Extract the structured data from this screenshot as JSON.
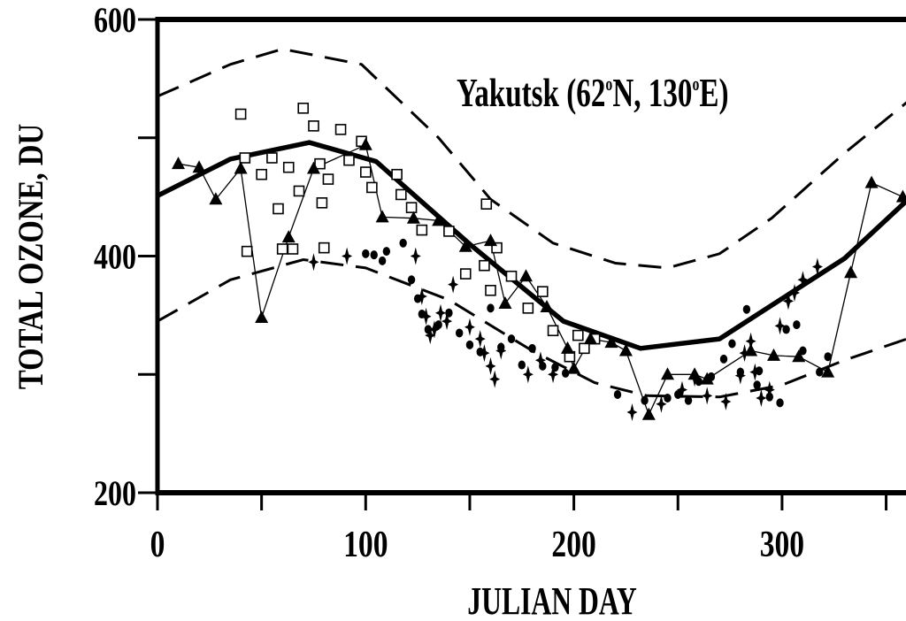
{
  "chart_data": {
    "type": "scatter",
    "title": "Yakutsk  (62°N, 130°E)",
    "title_parts": {
      "place": "Yakutsk  (62",
      "lat_unit": "N, 130",
      "lon_unit": "E)",
      "degree_mark": "o"
    },
    "xlabel": "JULIAN DAY",
    "ylabel": "TOTAL OZONE, DU",
    "xlim": [
      0,
      360
    ],
    "ylim": [
      200,
      600
    ],
    "x_ticks": [
      0,
      100,
      200,
      300
    ],
    "y_ticks_labeled": [
      200,
      400,
      600
    ],
    "y_ticks_minor": [
      300,
      500
    ],
    "grid": false,
    "series": [
      {
        "style": "thick-solid-line",
        "points": [
          [
            0,
            451
          ],
          [
            35,
            482
          ],
          [
            73,
            496
          ],
          [
            105,
            480
          ],
          [
            150,
            410
          ],
          [
            195,
            345
          ],
          [
            232,
            322
          ],
          [
            270,
            330
          ],
          [
            300,
            364
          ],
          [
            330,
            398
          ],
          [
            360,
            447
          ]
        ]
      },
      {
        "style": "upper-dashed-line",
        "points": [
          [
            0,
            535
          ],
          [
            35,
            562
          ],
          [
            60,
            575
          ],
          [
            98,
            562
          ],
          [
            135,
            500
          ],
          [
            160,
            448
          ],
          [
            190,
            411
          ],
          [
            220,
            394
          ],
          [
            245,
            390
          ],
          [
            270,
            402
          ],
          [
            295,
            432
          ],
          [
            330,
            487
          ],
          [
            360,
            530
          ]
        ]
      },
      {
        "style": "lower-dashed-line",
        "points": [
          [
            0,
            345
          ],
          [
            35,
            380
          ],
          [
            70,
            397
          ],
          [
            100,
            390
          ],
          [
            140,
            363
          ],
          [
            180,
            320
          ],
          [
            210,
            293
          ],
          [
            235,
            282
          ],
          [
            270,
            281
          ],
          [
            300,
            291
          ],
          [
            330,
            312
          ],
          [
            360,
            330
          ]
        ]
      },
      {
        "style": "triangles-with-thin-line",
        "points": [
          [
            10,
            478
          ],
          [
            20,
            475
          ],
          [
            28,
            448
          ],
          [
            40,
            474
          ],
          [
            50,
            348
          ],
          [
            63,
            416
          ],
          [
            75,
            474
          ],
          [
            100,
            494
          ],
          [
            108,
            433
          ],
          [
            123,
            432
          ],
          [
            135,
            430
          ],
          [
            148,
            408
          ],
          [
            160,
            413
          ],
          [
            167,
            360
          ],
          [
            177,
            383
          ],
          [
            187,
            357
          ],
          [
            197,
            322
          ],
          [
            200,
            305
          ],
          [
            208,
            330
          ],
          [
            218,
            327
          ],
          [
            225,
            320
          ],
          [
            236,
            266
          ],
          [
            245,
            300
          ],
          [
            258,
            300
          ],
          [
            264,
            296
          ],
          [
            285,
            320
          ],
          [
            296,
            316
          ],
          [
            308,
            315
          ],
          [
            322,
            302
          ],
          [
            333,
            386
          ],
          [
            343,
            462
          ],
          [
            358,
            450
          ]
        ]
      },
      {
        "style": "open-squares",
        "points": [
          [
            40,
            520
          ],
          [
            42,
            483
          ],
          [
            43,
            404
          ],
          [
            50,
            469
          ],
          [
            55,
            483
          ],
          [
            58,
            440
          ],
          [
            60,
            406
          ],
          [
            63,
            475
          ],
          [
            65,
            406
          ],
          [
            68,
            455
          ],
          [
            70,
            525
          ],
          [
            75,
            510
          ],
          [
            78,
            478
          ],
          [
            79,
            445
          ],
          [
            80,
            407
          ],
          [
            82,
            465
          ],
          [
            88,
            507
          ],
          [
            92,
            481
          ],
          [
            98,
            497
          ],
          [
            100,
            471
          ],
          [
            103,
            458
          ],
          [
            115,
            469
          ],
          [
            117,
            452
          ],
          [
            122,
            441
          ],
          [
            127,
            422
          ],
          [
            140,
            421
          ],
          [
            148,
            385
          ],
          [
            157,
            392
          ],
          [
            158,
            444
          ],
          [
            160,
            371
          ],
          [
            163,
            407
          ],
          [
            170,
            383
          ],
          [
            178,
            356
          ],
          [
            185,
            370
          ],
          [
            190,
            337
          ],
          [
            198,
            315
          ],
          [
            202,
            333
          ],
          [
            205,
            322
          ],
          [
            210,
            330
          ]
        ]
      },
      {
        "style": "filled-circles",
        "points": [
          [
            100,
            402
          ],
          [
            104,
            401
          ],
          [
            108,
            396
          ],
          [
            110,
            404
          ],
          [
            118,
            411
          ],
          [
            122,
            380
          ],
          [
            125,
            364
          ],
          [
            127,
            351
          ],
          [
            130,
            338
          ],
          [
            135,
            342
          ],
          [
            140,
            352
          ],
          [
            145,
            335
          ],
          [
            150,
            325
          ],
          [
            155,
            319
          ],
          [
            160,
            356
          ],
          [
            165,
            323
          ],
          [
            170,
            330
          ],
          [
            175,
            308
          ],
          [
            180,
            322
          ],
          [
            185,
            307
          ],
          [
            191,
            306
          ],
          [
            196,
            301
          ],
          [
            221,
            283
          ],
          [
            234,
            278
          ],
          [
            245,
            280
          ],
          [
            250,
            283
          ],
          [
            255,
            278
          ],
          [
            260,
            294
          ],
          [
            266,
            298
          ],
          [
            272,
            313
          ],
          [
            276,
            326
          ],
          [
            280,
            302
          ],
          [
            283,
            355
          ],
          [
            288,
            291
          ],
          [
            289,
            303
          ],
          [
            294,
            281
          ],
          [
            299,
            276
          ],
          [
            302,
            338
          ],
          [
            307,
            342
          ],
          [
            310,
            320
          ],
          [
            318,
            302
          ],
          [
            322,
            315
          ]
        ]
      },
      {
        "style": "four-point-stars",
        "points": [
          [
            75,
            395
          ],
          [
            91,
            400
          ],
          [
            124,
            400
          ],
          [
            127,
            366
          ],
          [
            129,
            349
          ],
          [
            131,
            333
          ],
          [
            133,
            338
          ],
          [
            136,
            352
          ],
          [
            139,
            345
          ],
          [
            142,
            376
          ],
          [
            150,
            340
          ],
          [
            155,
            330
          ],
          [
            157,
            318
          ],
          [
            160,
            307
          ],
          [
            162,
            296
          ],
          [
            165,
            320
          ],
          [
            178,
            300
          ],
          [
            184,
            312
          ],
          [
            190,
            300
          ],
          [
            228,
            268
          ],
          [
            242,
            275
          ],
          [
            252,
            287
          ],
          [
            258,
            297
          ],
          [
            264,
            282
          ],
          [
            273,
            277
          ],
          [
            280,
            299
          ],
          [
            282,
            318
          ],
          [
            285,
            328
          ],
          [
            287,
            302
          ],
          [
            290,
            280
          ],
          [
            294,
            287
          ],
          [
            299,
            341
          ],
          [
            303,
            362
          ],
          [
            306,
            369
          ],
          [
            310,
            380
          ],
          [
            317,
            391
          ]
        ]
      }
    ]
  }
}
